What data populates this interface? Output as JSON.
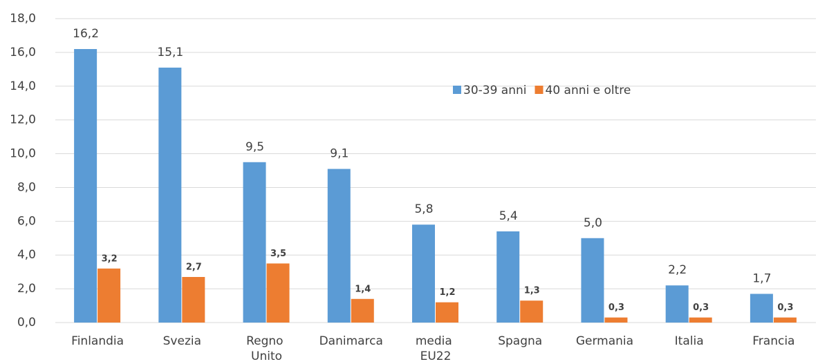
{
  "chart_data": {
    "type": "bar",
    "categories": [
      "Finlandia",
      "Svezia",
      "Regno Unito",
      "Danimarca",
      "media EU22",
      "Spagna",
      "Germania",
      "Italia",
      "Francia"
    ],
    "series": [
      {
        "name": "30-39 anni",
        "color": "#5b9bd5",
        "values": [
          16.2,
          15.1,
          9.5,
          9.1,
          5.8,
          5.4,
          5.0,
          2.2,
          1.7
        ],
        "value_labels": [
          "16,2",
          "15,1",
          "9,5",
          "9,1",
          "5,8",
          "5,4",
          "5,0",
          "2,2",
          "1,7"
        ]
      },
      {
        "name": "40 anni e oltre",
        "color": "#ed7d31",
        "values": [
          3.2,
          2.7,
          3.5,
          1.4,
          1.2,
          1.3,
          0.3,
          0.3,
          0.3
        ],
        "value_labels": [
          "3,2",
          "2,7",
          "3,5",
          "1,4",
          "1,2",
          "1,3",
          "0,3",
          "0,3",
          "0,3"
        ]
      }
    ],
    "ylim": [
      0,
      18
    ],
    "yticks": [
      {
        "value": 0,
        "label": "0,0"
      },
      {
        "value": 2,
        "label": "2,0"
      },
      {
        "value": 4,
        "label": "4,0"
      },
      {
        "value": 6,
        "label": "6,0"
      },
      {
        "value": 8,
        "label": "8,0"
      },
      {
        "value": 10,
        "label": "10,0"
      },
      {
        "value": 12,
        "label": "12,0"
      },
      {
        "value": 14,
        "label": "14,0"
      },
      {
        "value": 16,
        "label": "16,0"
      },
      {
        "value": 18,
        "label": "18,0"
      }
    ],
    "grid": true,
    "legend": "top-right"
  }
}
